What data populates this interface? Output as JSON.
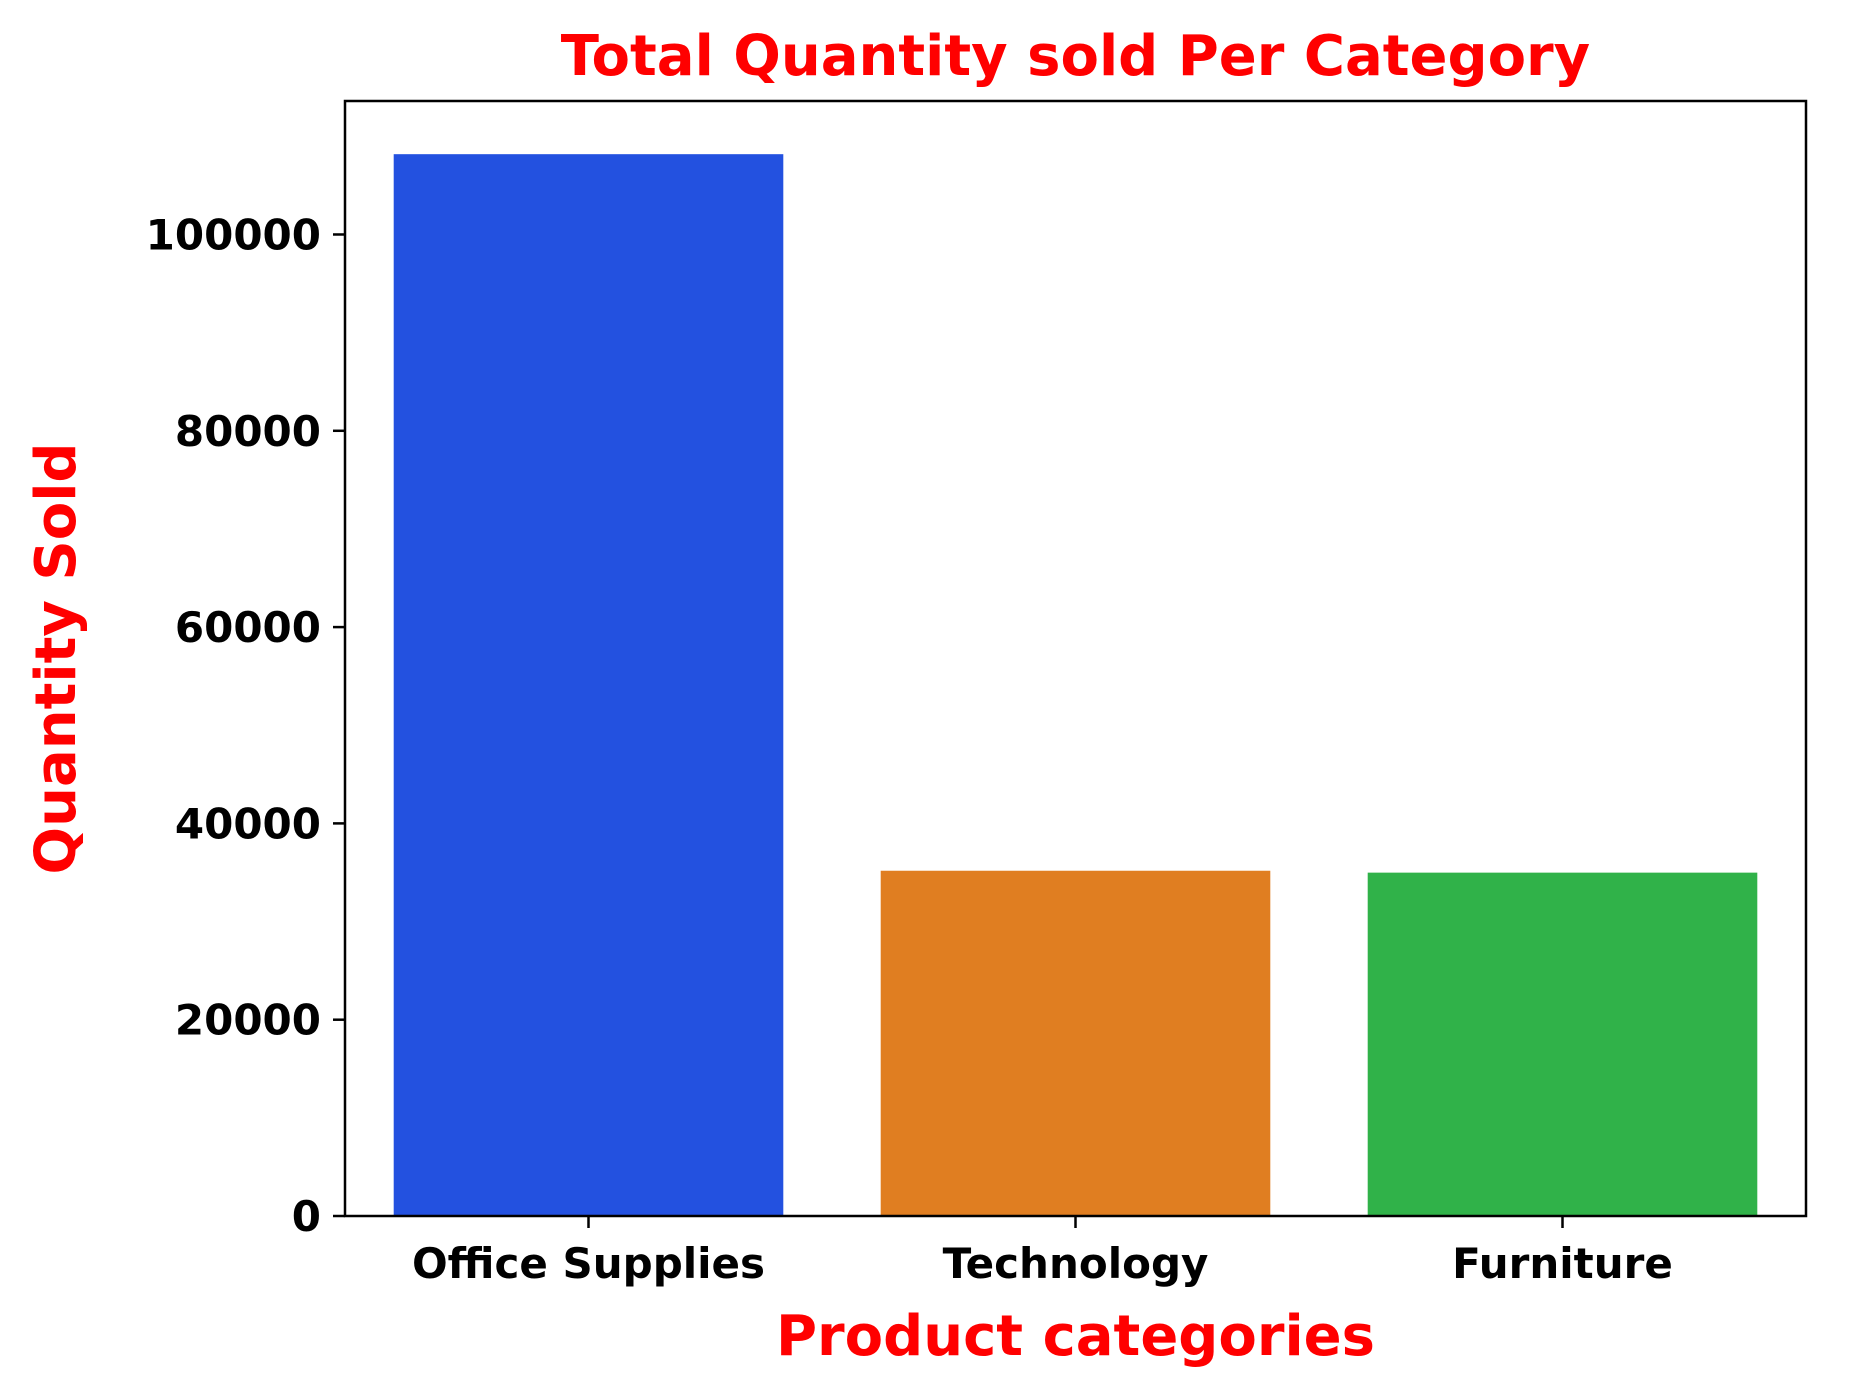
{
  "chart_data": {
    "type": "bar",
    "title": "Total Quantity sold Per Category",
    "xlabel": "Product categories",
    "ylabel": "Quantity Sold",
    "categories": [
      "Office Supplies",
      "Technology",
      "Furniture"
    ],
    "values": [
      108182,
      35176,
      34983
    ],
    "colors": [
      "#2351e0",
      "#e07e21",
      "#30b249"
    ],
    "ylim": [
      0,
      113600
    ],
    "yticks": [
      0,
      20000,
      40000,
      60000,
      80000,
      100000
    ],
    "ytick_labels": [
      "0",
      "20000",
      "40000",
      "60000",
      "80000",
      "100000"
    ],
    "grid": false,
    "legend": "none",
    "title_color": "#ff0000",
    "label_color": "#ff0000"
  }
}
